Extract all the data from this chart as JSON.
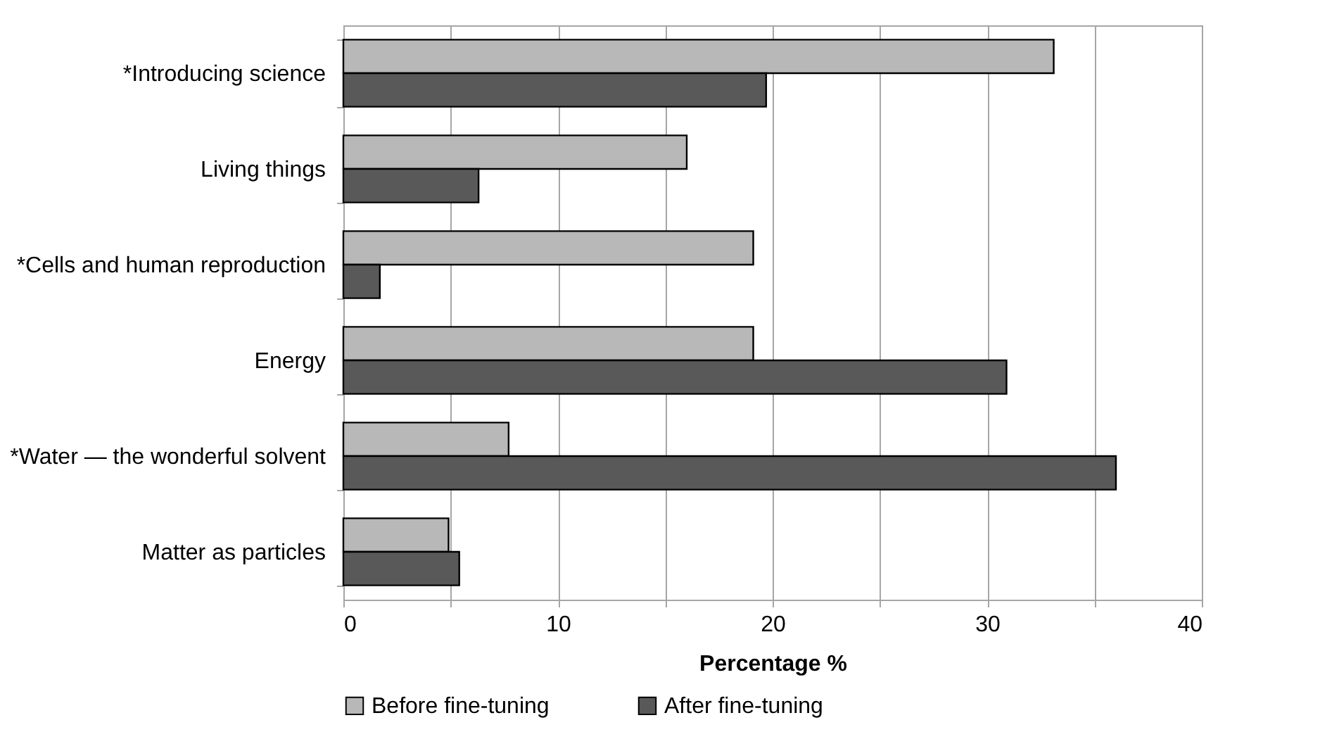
{
  "chart_data": {
    "type": "bar",
    "orientation": "horizontal",
    "xlabel": "Percentage %",
    "categories": [
      "*Introducing science",
      "Living things",
      "*Cells and human reproduction",
      "Energy",
      "*Water — the wonderful solvent",
      "Matter as particles"
    ],
    "series": [
      {
        "name": "Before fine-tuning",
        "color": "#b8b8b8",
        "values": [
          33.1,
          16.0,
          19.1,
          19.1,
          7.7,
          4.9
        ]
      },
      {
        "name": "After fine-tuning",
        "color": "#595959",
        "values": [
          19.7,
          6.3,
          1.7,
          30.9,
          36.0,
          5.4
        ]
      }
    ],
    "xlim": [
      0,
      40
    ],
    "xticks": [
      0,
      {
        "value": 5,
        "label": null
      },
      10,
      {
        "value": 15,
        "label": null
      },
      20,
      {
        "value": 25,
        "label": null
      },
      30,
      {
        "value": 35,
        "label": null
      },
      40
    ],
    "grid": true,
    "legend": "bottom"
  }
}
